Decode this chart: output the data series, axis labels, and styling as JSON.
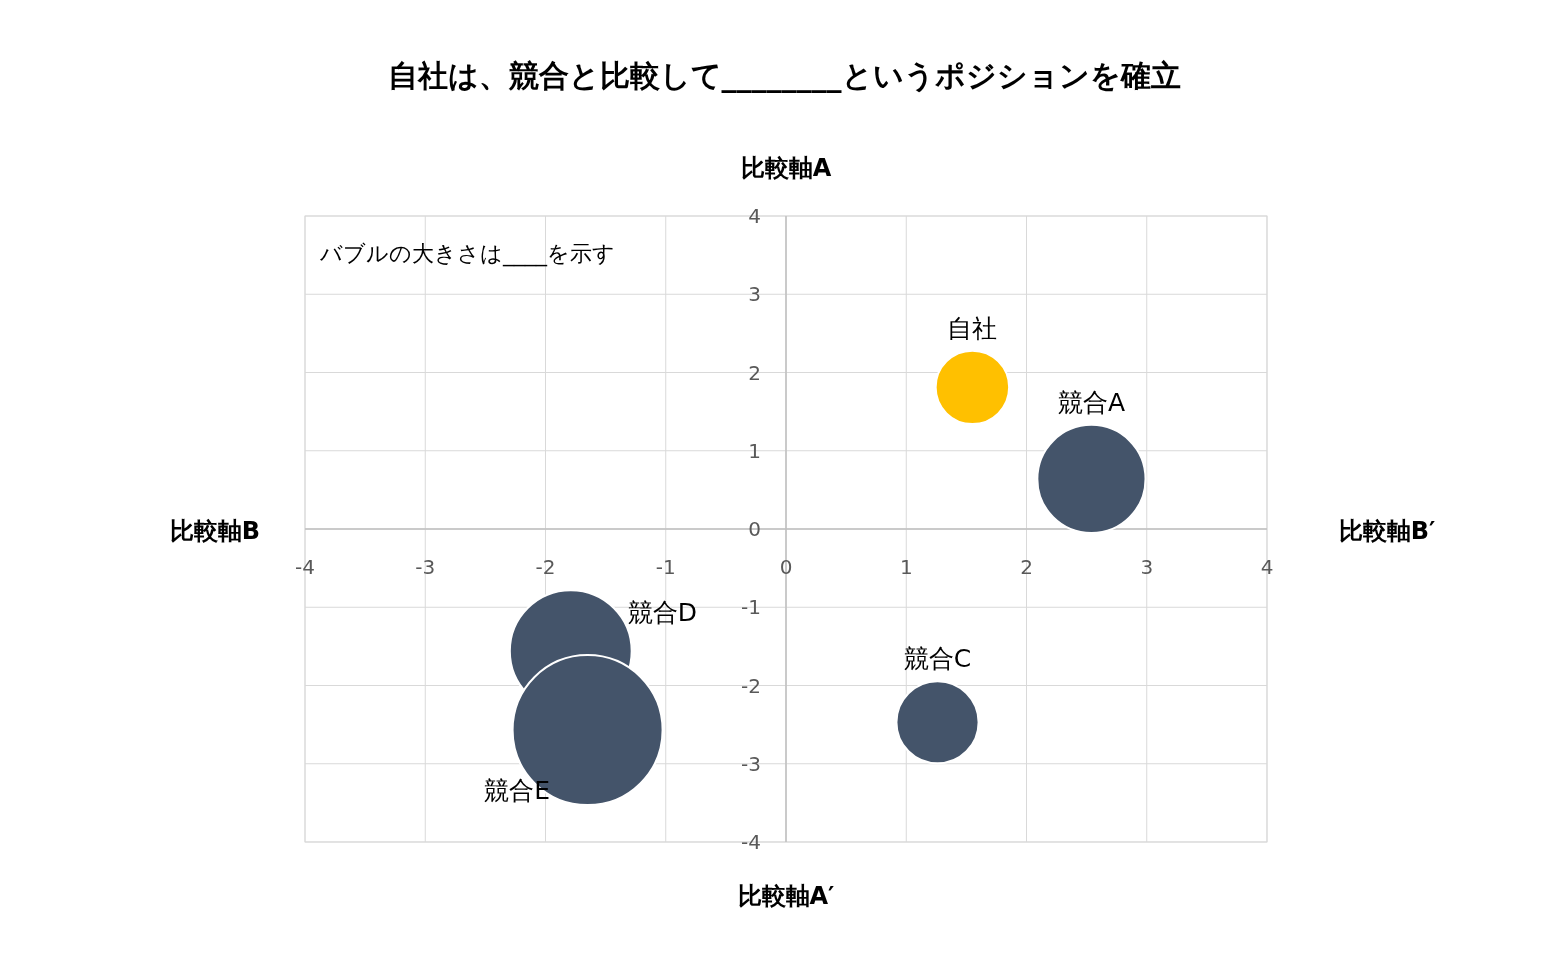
{
  "chart_data": {
    "type": "bubble",
    "title": "自社は、競合と比較して________というポジションを確立",
    "xlabel": "比較軸B′",
    "ylabel": "比較軸A",
    "annotations": [
      "バブルの大きさは____を示す",
      "比較軸B",
      "比較軸A′",
      {
        "text": "自社",
        "x": 1.55,
        "y": 1.81
      },
      {
        "text": "競合A",
        "x": 2.54,
        "y": 0.64
      },
      {
        "text": "競合C",
        "x": 1.26,
        "y": -2.47
      },
      {
        "text": "競合D",
        "x": -1.79,
        "y": -1.56
      },
      {
        "text": "競合E",
        "x": -1.65,
        "y": -2.57
      }
    ],
    "x": [
      1.55,
      2.54,
      1.26,
      -1.79,
      -1.65
    ],
    "values": [
      1.81,
      0.64,
      -2.47,
      -1.56,
      -2.57
    ],
    "sizes": [
      0.24,
      0.52,
      0.3,
      0.66,
      1
    ],
    "colors": [
      "#ffc000",
      "#44546a",
      "#44546a",
      "#44546a",
      "#44546a"
    ],
    "xlim": [
      -4,
      4
    ],
    "xticks": [
      -4,
      -3,
      -2,
      -1,
      0,
      1,
      2,
      3,
      4
    ],
    "ylim": [
      -4,
      4
    ],
    "yticks": [
      -4,
      -3,
      -2,
      -1,
      0,
      1,
      2,
      3,
      4
    ],
    "grid": true
  }
}
